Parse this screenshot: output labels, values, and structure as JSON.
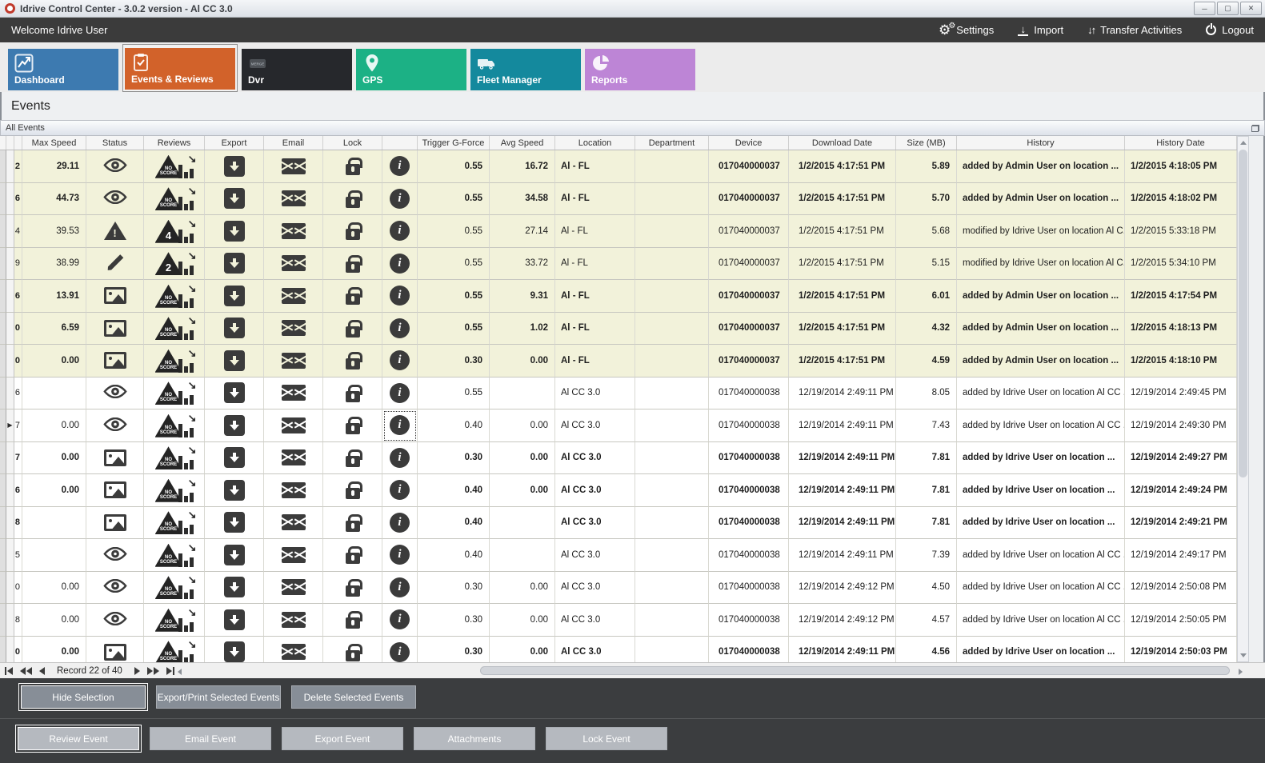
{
  "window": {
    "title": "Idrive Control Center - 3.0.2 version - Al CC 3.0",
    "controls": {
      "minimize": "─",
      "maximize": "▢",
      "close": "✕"
    }
  },
  "topbar": {
    "welcome": "Welcome Idrive User",
    "menu": [
      {
        "label": "Settings",
        "icon": "gears-icon"
      },
      {
        "label": "Import",
        "icon": "import-icon"
      },
      {
        "label": "Transfer Activities",
        "icon": "transfer-icon"
      },
      {
        "label": "Logout",
        "icon": "power-icon"
      }
    ]
  },
  "tabs": [
    {
      "label": "Dashboard",
      "color": "#3d7ab0",
      "icon": "line-chart-icon",
      "active": false
    },
    {
      "label": "Events & Reviews",
      "color": "#d2622a",
      "icon": "checklist-icon",
      "active": true
    },
    {
      "label": "Dvr",
      "color": "#26282c",
      "icon": "dvr-icon",
      "active": false
    },
    {
      "label": "GPS",
      "color": "#1cb185",
      "icon": "map-pin-icon",
      "active": false
    },
    {
      "label": "Fleet Manager",
      "color": "#14899d",
      "icon": "truck-icon",
      "active": false
    },
    {
      "label": "Reports",
      "color": "#bd85d6",
      "icon": "pie-chart-icon",
      "active": false
    }
  ],
  "page_title": "Events",
  "panel_title": "All Events",
  "table": {
    "columns": [
      "Max Speed",
      "Status",
      "Reviews",
      "Export",
      "Email",
      "Lock",
      "",
      "Trigger G-Force",
      "Avg Speed",
      "Location",
      "Department",
      "Device",
      "Download Date",
      "Size (MB)",
      "History",
      "History Date"
    ],
    "rows": [
      {
        "id_digit": "2",
        "max_speed": "29.11",
        "status": "eye",
        "review": "NO SCORE",
        "trigger": "0.55",
        "avg_speed": "16.72",
        "location": "Al - FL",
        "department": "",
        "device": "017040000037",
        "download_date": "1/2/2015 4:17:51 PM",
        "size": "5.89",
        "history": "added by Admin User on location ...",
        "history_date": "1/2/2015 4:18:05 PM",
        "bold": true,
        "beige": true,
        "selected": false
      },
      {
        "id_digit": "6",
        "max_speed": "44.73",
        "status": "eye",
        "review": "NO SCORE",
        "trigger": "0.55",
        "avg_speed": "34.58",
        "location": "Al - FL",
        "department": "",
        "device": "017040000037",
        "download_date": "1/2/2015 4:17:51 PM",
        "size": "5.70",
        "history": "added by Admin User on location ...",
        "history_date": "1/2/2015 4:18:02 PM",
        "bold": true,
        "beige": true,
        "selected": false
      },
      {
        "id_digit": "4",
        "max_speed": "39.53",
        "status": "warning",
        "review": "4",
        "trigger": "0.55",
        "avg_speed": "27.14",
        "location": "Al - FL",
        "department": "",
        "device": "017040000037",
        "download_date": "1/2/2015 4:17:51 PM",
        "size": "5.68",
        "history": "modified by Idrive User on location Al C...",
        "history_date": "1/2/2015 5:33:18 PM",
        "bold": false,
        "beige": true,
        "selected": false
      },
      {
        "id_digit": "9",
        "max_speed": "38.99",
        "status": "pencil",
        "review": "2",
        "trigger": "0.55",
        "avg_speed": "33.72",
        "location": "Al - FL",
        "department": "",
        "device": "017040000037",
        "download_date": "1/2/2015 4:17:51 PM",
        "size": "5.15",
        "history": "modified by Idrive User on location Al C...",
        "history_date": "1/2/2015 5:34:10 PM",
        "bold": false,
        "beige": true,
        "selected": false
      },
      {
        "id_digit": "6",
        "max_speed": "13.91",
        "status": "image",
        "review": "NO SCORE",
        "trigger": "0.55",
        "avg_speed": "9.31",
        "location": "Al - FL",
        "department": "",
        "device": "017040000037",
        "download_date": "1/2/2015 4:17:51 PM",
        "size": "6.01",
        "history": "added by Admin User on location ...",
        "history_date": "1/2/2015 4:17:54 PM",
        "bold": true,
        "beige": true,
        "selected": false
      },
      {
        "id_digit": "0",
        "max_speed": "6.59",
        "status": "image",
        "review": "NO SCORE",
        "trigger": "0.55",
        "avg_speed": "1.02",
        "location": "Al - FL",
        "department": "",
        "device": "017040000037",
        "download_date": "1/2/2015 4:17:51 PM",
        "size": "4.32",
        "history": "added by Admin User on location ...",
        "history_date": "1/2/2015 4:18:13 PM",
        "bold": true,
        "beige": true,
        "selected": false
      },
      {
        "id_digit": "0",
        "max_speed": "0.00",
        "status": "image",
        "review": "NO SCORE",
        "trigger": "0.30",
        "avg_speed": "0.00",
        "location": "Al - FL",
        "department": "",
        "device": "017040000037",
        "download_date": "1/2/2015 4:17:51 PM",
        "size": "4.59",
        "history": "added by Admin User on location ...",
        "history_date": "1/2/2015 4:18:10 PM",
        "bold": true,
        "beige": true,
        "selected": false
      },
      {
        "id_digit": "6",
        "max_speed": "",
        "status": "eye",
        "review": "NO SCORE",
        "trigger": "0.55",
        "avg_speed": "",
        "location": "Al CC 3.0",
        "department": "",
        "device": "017040000038",
        "download_date": "12/19/2014 2:49:11 PM",
        "size": "8.05",
        "history": "added by Idrive User on location Al CC ...",
        "history_date": "12/19/2014 2:49:45 PM",
        "bold": false,
        "beige": false,
        "selected": false
      },
      {
        "id_digit": "7",
        "max_speed": "0.00",
        "status": "eye",
        "review": "NO SCORE",
        "trigger": "0.40",
        "avg_speed": "0.00",
        "location": "Al CC 3.0",
        "department": "",
        "device": "017040000038",
        "download_date": "12/19/2014 2:49:11 PM",
        "size": "7.43",
        "history": "added by Idrive User on location Al CC ...",
        "history_date": "12/19/2014 2:49:30 PM",
        "bold": false,
        "beige": false,
        "selected": true
      },
      {
        "id_digit": "7",
        "max_speed": "0.00",
        "status": "image",
        "review": "NO SCORE",
        "trigger": "0.30",
        "avg_speed": "0.00",
        "location": "Al CC 3.0",
        "department": "",
        "device": "017040000038",
        "download_date": "12/19/2014 2:49:11 PM",
        "size": "7.81",
        "history": "added by Idrive User on location ...",
        "history_date": "12/19/2014 2:49:27 PM",
        "bold": true,
        "beige": false,
        "selected": false
      },
      {
        "id_digit": "6",
        "max_speed": "0.00",
        "status": "image",
        "review": "NO SCORE",
        "trigger": "0.40",
        "avg_speed": "0.00",
        "location": "Al CC 3.0",
        "department": "",
        "device": "017040000038",
        "download_date": "12/19/2014 2:49:11 PM",
        "size": "7.81",
        "history": "added by Idrive User on location ...",
        "history_date": "12/19/2014 2:49:24 PM",
        "bold": true,
        "beige": false,
        "selected": false
      },
      {
        "id_digit": "8",
        "max_speed": "",
        "status": "image",
        "review": "NO SCORE",
        "trigger": "0.40",
        "avg_speed": "",
        "location": "Al CC 3.0",
        "department": "",
        "device": "017040000038",
        "download_date": "12/19/2014 2:49:11 PM",
        "size": "7.81",
        "history": "added by Idrive User on location ...",
        "history_date": "12/19/2014 2:49:21 PM",
        "bold": true,
        "beige": false,
        "selected": false
      },
      {
        "id_digit": "5",
        "max_speed": "",
        "status": "eye",
        "review": "NO SCORE",
        "trigger": "0.40",
        "avg_speed": "",
        "location": "Al CC 3.0",
        "department": "",
        "device": "017040000038",
        "download_date": "12/19/2014 2:49:11 PM",
        "size": "7.39",
        "history": "added by Idrive User on location Al CC ...",
        "history_date": "12/19/2014 2:49:17 PM",
        "bold": false,
        "beige": false,
        "selected": false
      },
      {
        "id_digit": "0",
        "max_speed": "0.00",
        "status": "eye",
        "review": "NO SCORE",
        "trigger": "0.30",
        "avg_speed": "0.00",
        "location": "Al CC 3.0",
        "department": "",
        "device": "017040000038",
        "download_date": "12/19/2014 2:49:12 PM",
        "size": "4.50",
        "history": "added by Idrive User on location Al CC ...",
        "history_date": "12/19/2014 2:50:08 PM",
        "bold": false,
        "beige": false,
        "selected": false
      },
      {
        "id_digit": "8",
        "max_speed": "0.00",
        "status": "eye",
        "review": "NO SCORE",
        "trigger": "0.30",
        "avg_speed": "0.00",
        "location": "Al CC 3.0",
        "department": "",
        "device": "017040000038",
        "download_date": "12/19/2014 2:49:12 PM",
        "size": "4.57",
        "history": "added by Idrive User on location Al CC ...",
        "history_date": "12/19/2014 2:50:05 PM",
        "bold": false,
        "beige": false,
        "selected": false
      },
      {
        "id_digit": "0",
        "max_speed": "0.00",
        "status": "image",
        "review": "NO SCORE",
        "trigger": "0.30",
        "avg_speed": "0.00",
        "location": "Al CC 3.0",
        "department": "",
        "device": "017040000038",
        "download_date": "12/19/2014 2:49:11 PM",
        "size": "4.56",
        "history": "added by Idrive User on location ...",
        "history_date": "12/19/2014 2:50:03 PM",
        "bold": true,
        "beige": false,
        "selected": false
      }
    ]
  },
  "paginator": {
    "label": "Record 22 of 40"
  },
  "actions_top": [
    "Hide Selection",
    "Export/Print Selected Events",
    "Delete Selected  Events"
  ],
  "actions_bottom": [
    "Review Event",
    "Email Event",
    "Export Event",
    "Attachments",
    "Lock Event"
  ],
  "colors": {
    "beige_row": "#f2f2da",
    "icon_dark": "#3b3b3b",
    "panel_dark": "#3b3d3f"
  }
}
